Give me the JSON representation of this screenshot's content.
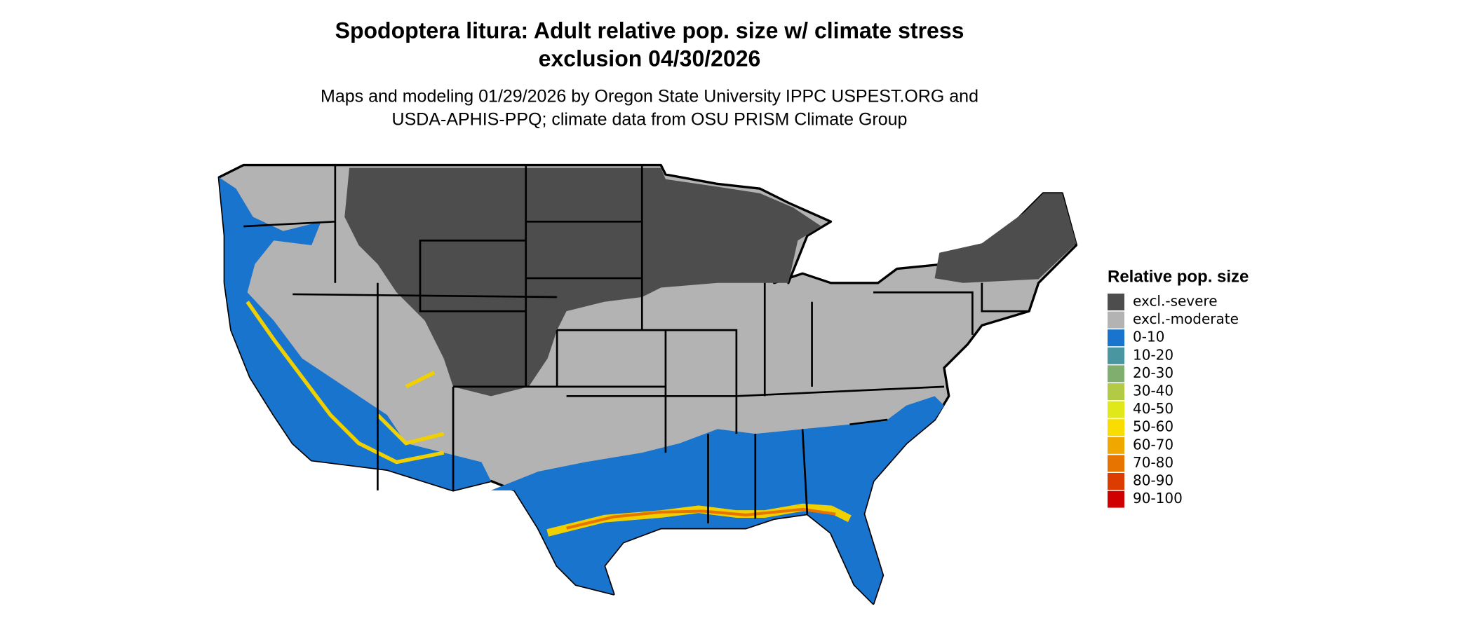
{
  "header": {
    "title": [
      "Spodoptera litura: Adult relative pop. size w/ climate stress",
      "exclusion 04/30/2026"
    ],
    "subtitle": [
      "Maps and modeling 01/29/2026 by Oregon State University IPPC USPEST.ORG and",
      "USDA-APHIS-PPQ; climate data from OSU PRISM Climate Group"
    ]
  },
  "legend": {
    "title": "Relative pop. size",
    "items": [
      {
        "label": "excl.-severe",
        "color": "#4d4d4d"
      },
      {
        "label": "excl.-moderate",
        "color": "#b3b3b3"
      },
      {
        "label": "0-10",
        "color": "#1874cd"
      },
      {
        "label": "10-20",
        "color": "#4a96a0"
      },
      {
        "label": "20-30",
        "color": "#7fae6f"
      },
      {
        "label": "30-40",
        "color": "#b1cc44"
      },
      {
        "label": "40-50",
        "color": "#e0e81a"
      },
      {
        "label": "50-60",
        "color": "#f9dc00"
      },
      {
        "label": "60-70",
        "color": "#f0a800"
      },
      {
        "label": "70-80",
        "color": "#e87400"
      },
      {
        "label": "80-90",
        "color": "#dc3c00"
      },
      {
        "label": "90-100",
        "color": "#d00000"
      }
    ]
  }
}
